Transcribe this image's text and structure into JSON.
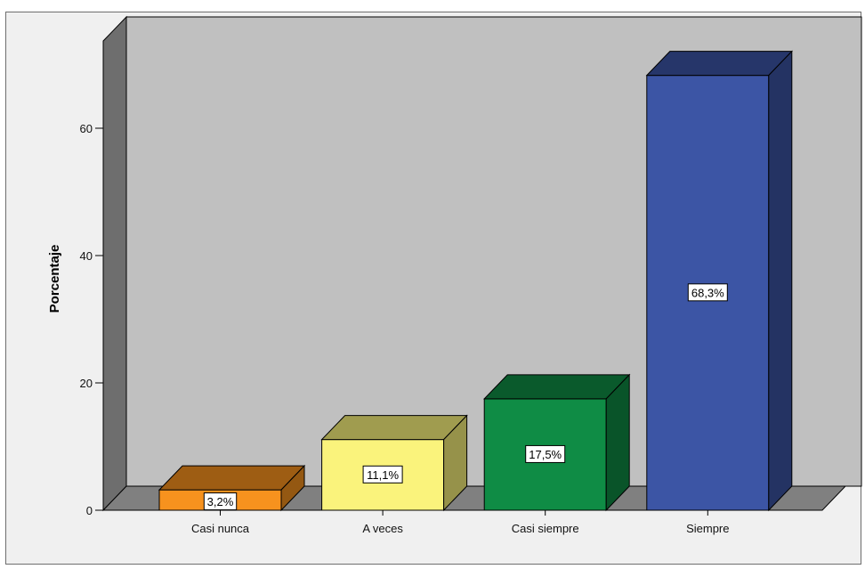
{
  "chart_data": {
    "type": "bar",
    "categories": [
      "Casi nunca",
      "A veces",
      "Casi siempre",
      "Siempre"
    ],
    "values": [
      3.2,
      11.1,
      17.5,
      68.3
    ],
    "data_labels": [
      "3,2%",
      "11,1%",
      "17,5%",
      "68,3%"
    ],
    "colors": [
      "#f7921e",
      "#faf37c",
      "#0f8c45",
      "#3c55a5"
    ],
    "xlabel": "",
    "ylabel": "Porcentaje",
    "ylim": [
      0,
      75
    ],
    "yticks": [
      0,
      20,
      40,
      60
    ],
    "ytick_labels": [
      "0",
      "20",
      "40",
      "60"
    ],
    "grid": false,
    "three_d": true,
    "plot_background": "#c0c0c0",
    "floor_color": "#808080",
    "legend": "none"
  }
}
